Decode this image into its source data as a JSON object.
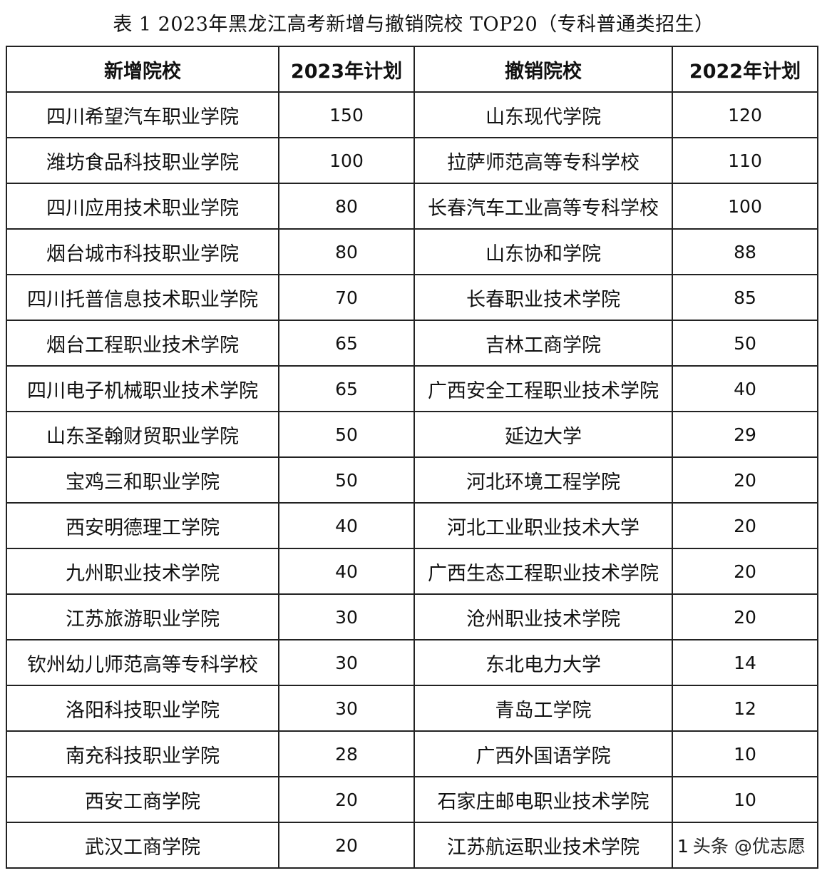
{
  "title": "表 1 2023年黑龙江高考新增与撤销院校 TOP20（专科普通类招生）",
  "headers": [
    "新增院校",
    "2023年计划",
    "撤销院校",
    "2022年计划"
  ],
  "rows": [
    [
      "四川希望汽车职业学院",
      "150",
      "山东现代学院",
      "120"
    ],
    [
      "潍坊食品科技职业学院",
      "100",
      "拉萨师范高等专科学校",
      "110"
    ],
    [
      "四川应用技术职业学院",
      "80",
      "长春汽车工业高等专科学校",
      "100"
    ],
    [
      "烟台城市科技职业学院",
      "80",
      "山东协和学院",
      "88"
    ],
    [
      "四川托普信息技术职业学院",
      "70",
      "长春职业技术学院",
      "85"
    ],
    [
      "烟台工程职业技术学院",
      "65",
      "吉林工商学院",
      "50"
    ],
    [
      "四川电子机械职业技术学院",
      "65",
      "广西安全工程职业技术学院",
      "40"
    ],
    [
      "山东圣翰财贸职业学院",
      "50",
      "延边大学",
      "29"
    ],
    [
      "宝鸡三和职业学院",
      "50",
      "河北环境工程学院",
      "20"
    ],
    [
      "西安明德理工学院",
      "40",
      "河北工业职业技术大学",
      "20"
    ],
    [
      "九州职业技术学院",
      "40",
      "广西生态工程职业技术学院",
      "20"
    ],
    [
      "江苏旅游职业学院",
      "30",
      "沧州职业技术学院",
      "20"
    ],
    [
      "钦州幼儿师范高等专科学校",
      "30",
      "东北电力大学",
      "14"
    ],
    [
      "洛阳科技职业学院",
      "30",
      "青岛工学院",
      "12"
    ],
    [
      "南充科技职业学院",
      "28",
      "广西外国语学院",
      "10"
    ],
    [
      "西安工商学院",
      "20",
      "石家庄邮电职业技术学院",
      "10"
    ],
    [
      "武汉工商学院",
      "20",
      "江苏航运职业技术学院",
      "1"
    ]
  ],
  "watermark": "头条 @优志愿"
}
